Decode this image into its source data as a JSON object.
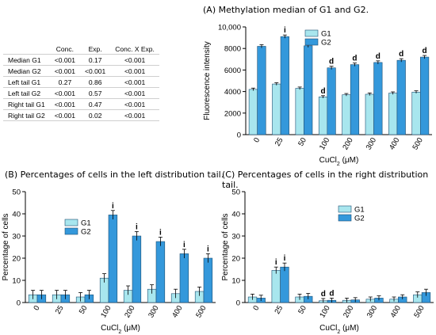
{
  "colors": {
    "g1": "#a8e6ee",
    "g2": "#3498db",
    "bar_stroke": "#1f4f73"
  },
  "stats_table": {
    "headers": [
      "",
      "Conc.",
      "Exp.",
      "Conc. X Exp."
    ],
    "rows": [
      [
        "Median G1",
        "<0.001",
        "0.17",
        "<0.001"
      ],
      [
        "Median G2",
        "<0.001",
        "<0.001",
        "<0.001"
      ],
      [
        "Left tail G1",
        "0.27",
        "0.86",
        "<0.001"
      ],
      [
        "Left tail G2",
        "<0.001",
        "0.57",
        "<0.001"
      ],
      [
        "Right tail G1",
        "<0.001",
        "0.47",
        "<0.001"
      ],
      [
        "Right tail G2",
        "<0.001",
        "0.02",
        "<0.001"
      ]
    ]
  },
  "chart_data": [
    {
      "type": "bar",
      "title": "(A) Methylation median of G1 and G2.",
      "xlabel": "CuCl",
      "xlabel_sub": "2",
      "xlabel_unit": " (μM)",
      "ylabel": "Fluorescence intensity",
      "categories": [
        "0",
        "25",
        "50",
        "100",
        "200",
        "300",
        "400",
        "500"
      ],
      "ylim": [
        0,
        10000
      ],
      "yticks": [
        0,
        2000,
        4000,
        6000,
        8000,
        10000
      ],
      "ytick_labels": [
        "0",
        "2000",
        "4000",
        "6000",
        "8000",
        "10,000"
      ],
      "legend_position": "top-right",
      "series": [
        {
          "name": "G1",
          "values": [
            4200,
            4700,
            4300,
            3500,
            3700,
            3750,
            3850,
            3950
          ],
          "errors": [
            120,
            120,
            120,
            120,
            120,
            120,
            120,
            120
          ]
        },
        {
          "name": "G2",
          "values": [
            8200,
            9100,
            8250,
            6200,
            6500,
            6700,
            6900,
            7200
          ],
          "errors": [
            150,
            150,
            150,
            150,
            150,
            150,
            150,
            150
          ]
        }
      ],
      "annotations": [
        {
          "category": "25",
          "series": "G2",
          "text": "i"
        },
        {
          "category": "100",
          "series": "G1",
          "text": "d"
        },
        {
          "category": "100",
          "series": "G2",
          "text": "d"
        },
        {
          "category": "200",
          "series": "G2",
          "text": "d"
        },
        {
          "category": "300",
          "series": "G2",
          "text": "d"
        },
        {
          "category": "400",
          "series": "G2",
          "text": "d"
        },
        {
          "category": "500",
          "series": "G2",
          "text": "d"
        }
      ]
    },
    {
      "type": "bar",
      "title": "(B) Percentages of cells in the left distribution tail.",
      "xlabel": "CuCl",
      "xlabel_sub": "2",
      "xlabel_unit": " (μM)",
      "ylabel": "Percentage of cells",
      "categories": [
        "0",
        "25",
        "50",
        "100",
        "200",
        "300",
        "400",
        "500"
      ],
      "ylim": [
        0,
        50
      ],
      "yticks": [
        0,
        10,
        20,
        30,
        40,
        50
      ],
      "ytick_labels": [
        "0",
        "10",
        "20",
        "30",
        "40",
        "50"
      ],
      "legend_position": "top-left",
      "series": [
        {
          "name": "G1",
          "values": [
            3.5,
            3.5,
            2.5,
            11,
            5.5,
            6,
            4,
            5
          ],
          "errors": [
            2,
            2,
            2,
            2,
            2,
            2,
            2,
            2
          ]
        },
        {
          "name": "G2",
          "values": [
            3.5,
            3.5,
            3.5,
            39.5,
            30,
            27.5,
            22,
            20
          ],
          "errors": [
            2,
            2,
            2,
            2,
            2,
            2,
            2,
            2
          ]
        }
      ],
      "annotations": [
        {
          "category": "100",
          "series": "G2",
          "text": "i"
        },
        {
          "category": "200",
          "series": "G2",
          "text": "i"
        },
        {
          "category": "300",
          "series": "G2",
          "text": "i"
        },
        {
          "category": "400",
          "series": "G2",
          "text": "i"
        },
        {
          "category": "500",
          "series": "G2",
          "text": "i"
        }
      ]
    },
    {
      "type": "bar",
      "title": "(C) Percentages of cells in the right distribution tail.",
      "xlabel": "CuCl",
      "xlabel_sub": "2",
      "xlabel_unit": " (μM)",
      "ylabel": "Percentage of cells",
      "categories": [
        "0",
        "25",
        "50",
        "100",
        "200",
        "300",
        "400",
        "500"
      ],
      "ylim": [
        0,
        50
      ],
      "yticks": [
        0,
        10,
        20,
        30,
        40,
        50
      ],
      "ytick_labels": [
        "0",
        "10",
        "20",
        "30",
        "40",
        "50"
      ],
      "legend_position": "top-right",
      "series": [
        {
          "name": "G1",
          "values": [
            2.5,
            14.5,
            2.5,
            0.8,
            1,
            1.5,
            1.5,
            3.5
          ],
          "errors": [
            1.3,
            1.5,
            1.3,
            1,
            1,
            1,
            1,
            1.3
          ]
        },
        {
          "name": "G2",
          "values": [
            2,
            16,
            2.8,
            1,
            1.2,
            2,
            2.5,
            4.5
          ],
          "errors": [
            1.3,
            1.8,
            1.3,
            1,
            1,
            1,
            1,
            1.5
          ]
        }
      ],
      "annotations": [
        {
          "category": "25",
          "series": "G1",
          "text": "i"
        },
        {
          "category": "25",
          "series": "G2",
          "text": "i"
        },
        {
          "category": "100",
          "series": "G1",
          "text": "d"
        },
        {
          "category": "100",
          "series": "G2",
          "text": "d"
        }
      ]
    }
  ]
}
